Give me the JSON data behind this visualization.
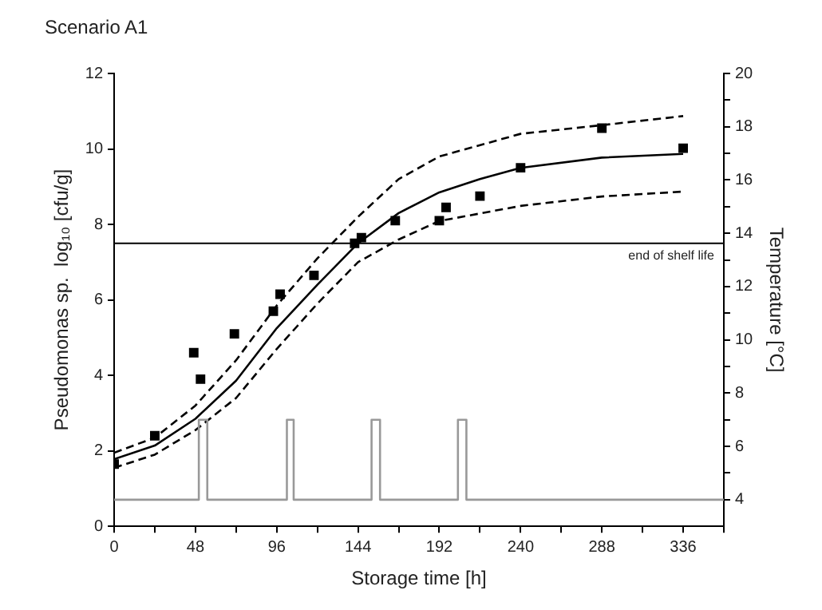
{
  "chart_data": {
    "type": "line",
    "title": "Scenario A1",
    "xlabel": "Storage time [h]",
    "ylabel": "Pseudomonas sp.  log₁₀ [cfu/g]",
    "y2label": "Temperature [°C]",
    "xlim": [
      0,
      360
    ],
    "xticks": [
      0,
      {
        "value": 24,
        "label": null
      },
      48,
      {
        "value": 72,
        "label": null
      },
      96,
      {
        "value": 120,
        "label": null
      },
      144,
      {
        "value": 168,
        "label": null
      },
      192,
      {
        "value": 216,
        "label": null
      },
      240,
      {
        "value": 264,
        "label": null
      },
      288,
      {
        "value": 312,
        "label": null
      },
      336,
      {
        "value": 360,
        "label": null
      }
    ],
    "ylim": [
      0,
      12
    ],
    "yticks": [
      0,
      2,
      4,
      6,
      8,
      10,
      12
    ],
    "y2lim": [
      3,
      20
    ],
    "y2ticks": [
      4,
      {
        "value": 5,
        "label": null
      },
      6,
      {
        "value": 7,
        "label": null
      },
      8,
      {
        "value": 9,
        "label": null
      },
      10,
      {
        "value": 11,
        "label": null
      },
      12,
      {
        "value": 13,
        "label": null
      },
      14,
      {
        "value": 15,
        "label": null
      },
      16,
      {
        "value": 17,
        "label": null
      },
      18,
      {
        "value": 19,
        "label": null
      },
      20
    ],
    "grid": false,
    "legend": false,
    "ref_lines": [
      {
        "axis": "y",
        "value": 7.5,
        "label": "end of shelf life",
        "color": "#000000"
      }
    ],
    "series": [
      {
        "type": "line",
        "color": "#999999",
        "axis": "y2",
        "marker": "none",
        "line_style": "solid",
        "x": [
          0,
          50,
          50,
          55,
          55,
          102,
          102,
          106,
          106,
          152,
          152,
          157,
          157,
          203,
          203,
          208,
          208,
          360
        ],
        "values": [
          4,
          4,
          7,
          7,
          4,
          4,
          7,
          7,
          4,
          4,
          7,
          7,
          4,
          4,
          7,
          7,
          4,
          4
        ]
      },
      {
        "type": "line",
        "color": "#000000",
        "marker": "none",
        "line_style": "solid",
        "x": [
          0,
          24,
          48,
          72,
          96,
          120,
          144,
          168,
          192,
          216,
          240,
          288,
          336
        ],
        "values": [
          1.78,
          2.14,
          2.85,
          3.86,
          5.25,
          6.4,
          7.5,
          8.3,
          8.85,
          9.2,
          9.5,
          9.77,
          9.87
        ]
      },
      {
        "type": "line",
        "color": "#000000",
        "marker": "none",
        "line_style": "dashed",
        "x": [
          0,
          24,
          48,
          72,
          96,
          120,
          144,
          168,
          192,
          240,
          288,
          336
        ],
        "values": [
          1.95,
          2.35,
          3.2,
          4.4,
          5.85,
          7.1,
          8.2,
          9.2,
          9.8,
          10.4,
          10.63,
          10.87
        ]
      },
      {
        "type": "line",
        "color": "#000000",
        "marker": "none",
        "line_style": "dashed",
        "x": [
          0,
          24,
          48,
          72,
          96,
          120,
          144,
          168,
          192,
          240,
          288,
          336
        ],
        "values": [
          1.55,
          1.9,
          2.55,
          3.4,
          4.7,
          5.9,
          7.0,
          7.6,
          8.09,
          8.49,
          8.74,
          8.87
        ]
      },
      {
        "type": "scatter",
        "color": "#000000",
        "marker": "square",
        "x": [
          0,
          24,
          47,
          51,
          71,
          94,
          98,
          118,
          142,
          146,
          166,
          192,
          196,
          216,
          240,
          288,
          336
        ],
        "values": [
          1.65,
          2.4,
          4.6,
          3.9,
          5.1,
          5.7,
          6.15,
          6.65,
          7.5,
          7.65,
          8.1,
          8.1,
          8.45,
          8.75,
          9.5,
          10.55,
          10.02
        ]
      }
    ]
  }
}
